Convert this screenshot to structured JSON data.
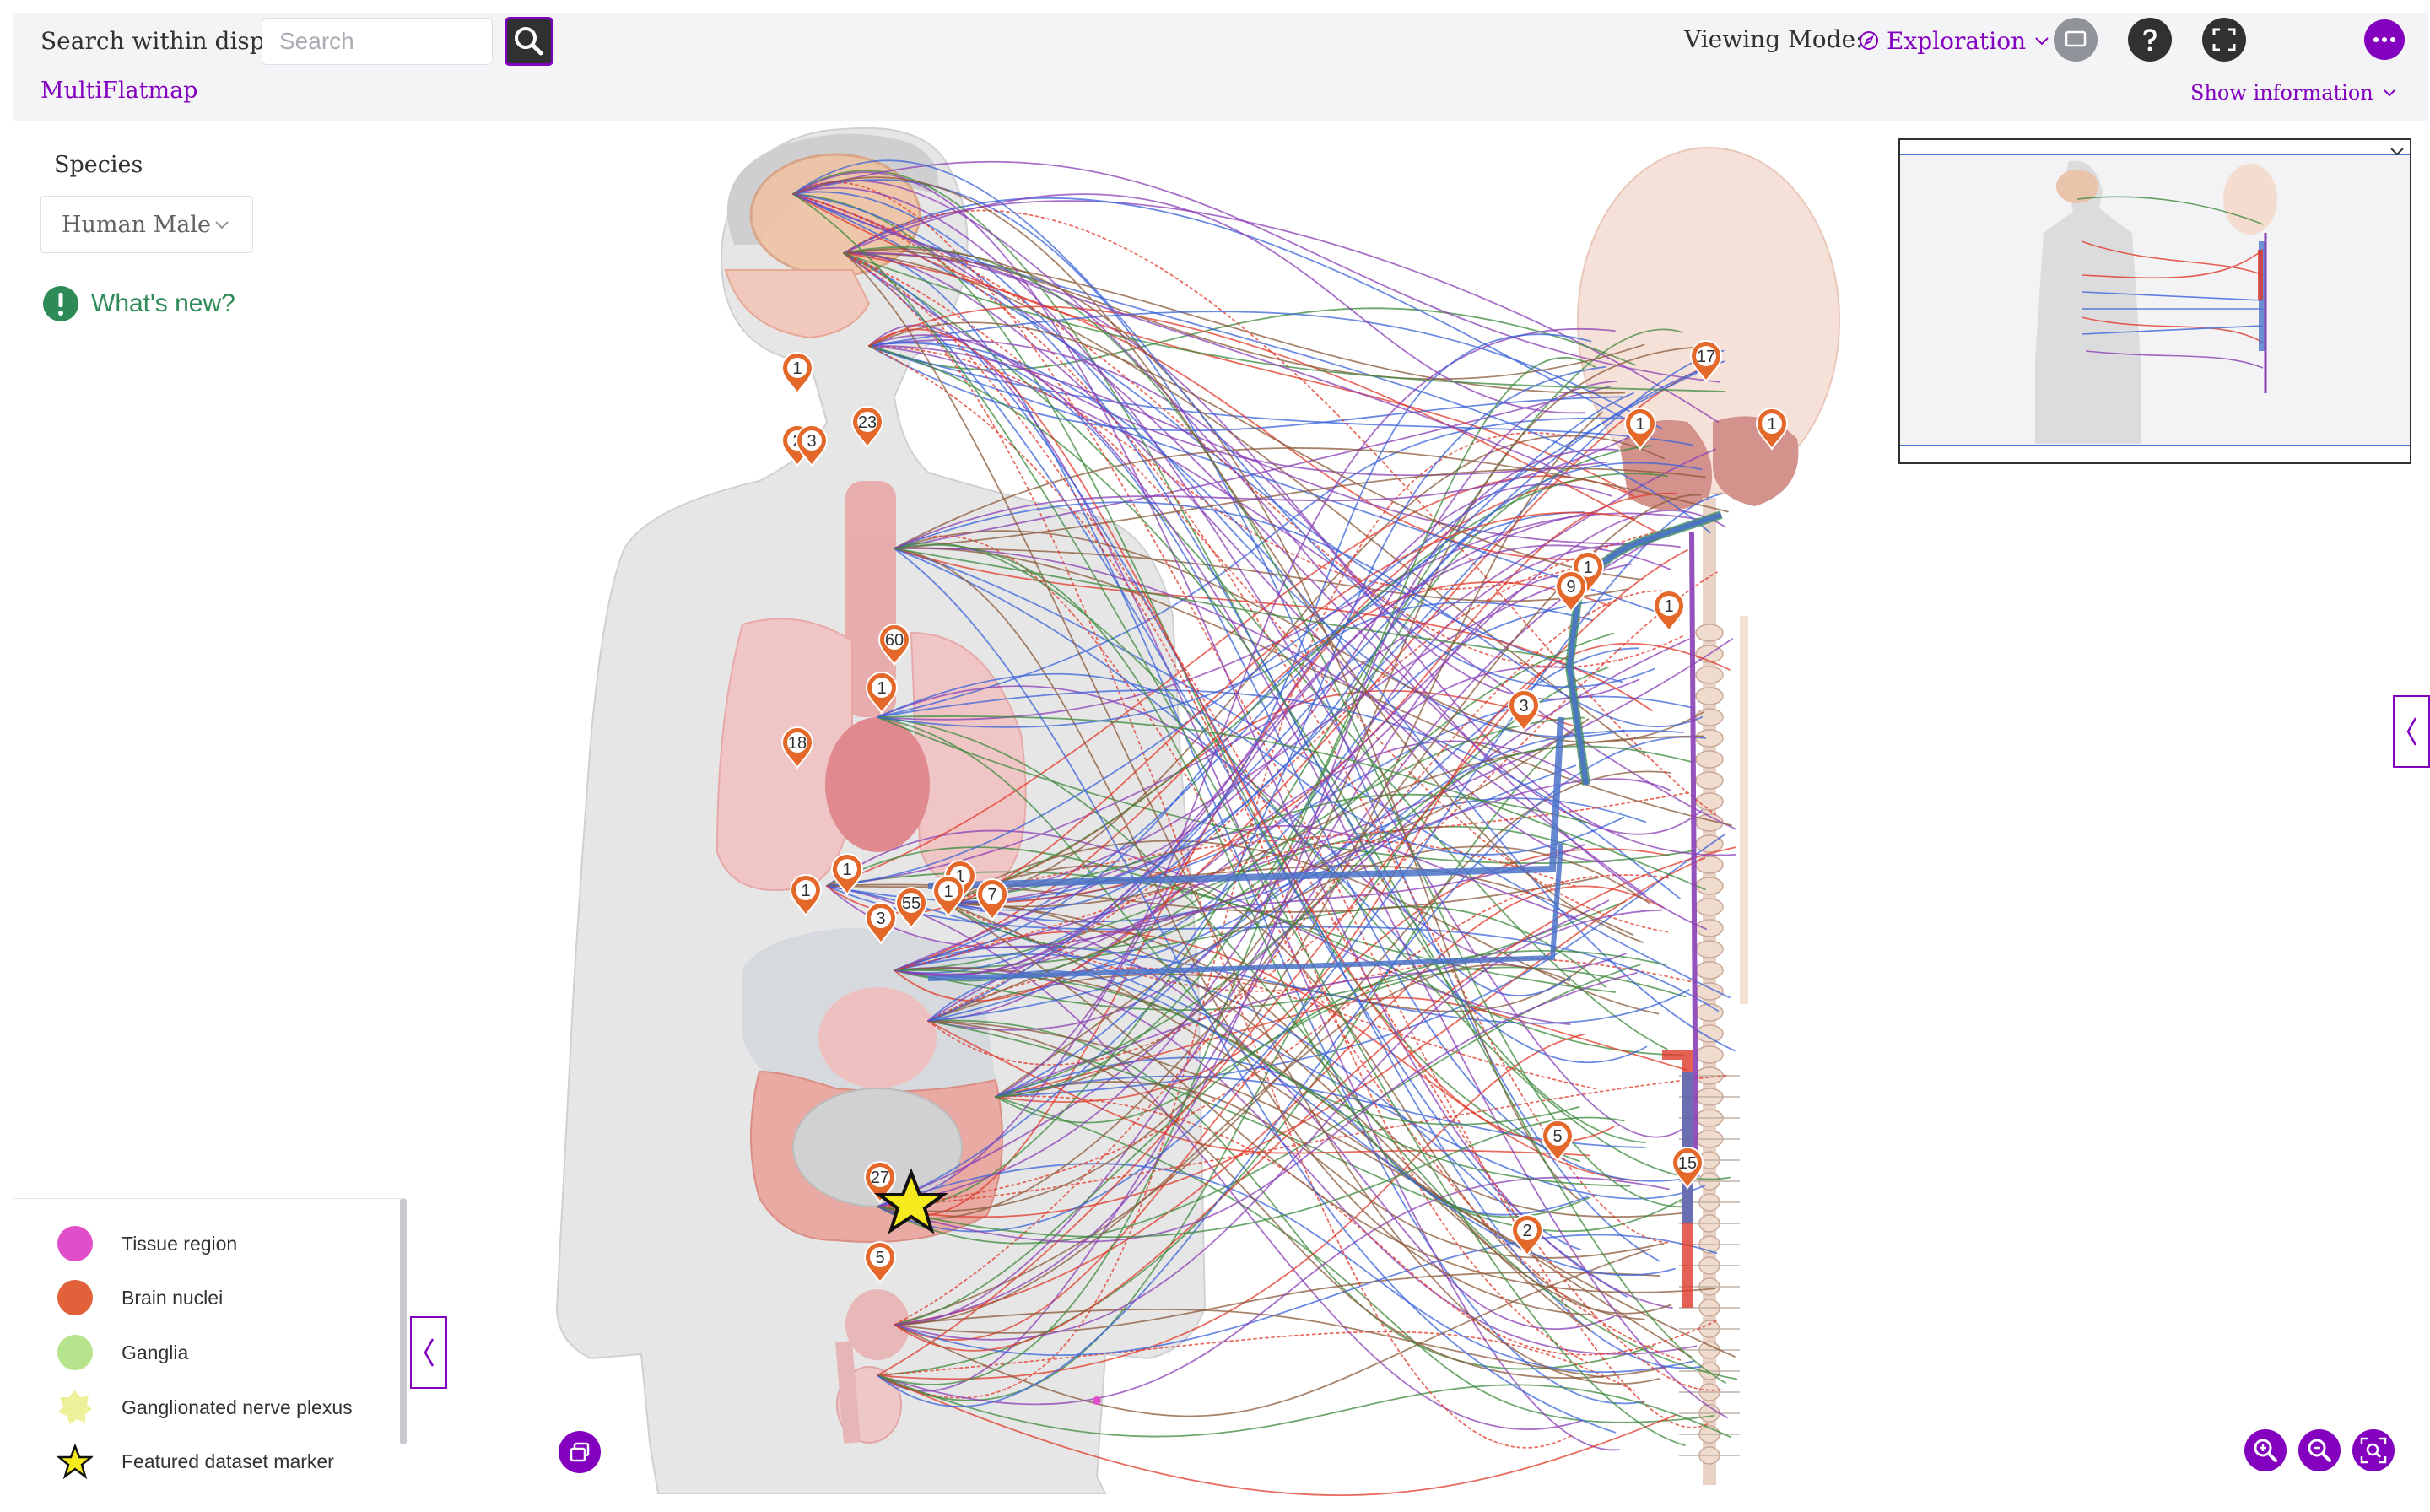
{
  "search": {
    "label": "Search within display",
    "placeholder": "Search"
  },
  "viewing": {
    "label": "Viewing Mode:",
    "mode": "Exploration"
  },
  "app": {
    "name": "MultiFlatmap",
    "info_toggle": "Show information"
  },
  "species": {
    "label": "Species",
    "value": "Human Male"
  },
  "whats_new": "What's new?",
  "legend": [
    {
      "label": "Tissue region",
      "color": "#e04fc9",
      "shape": "circle"
    },
    {
      "label": "Brain nuclei",
      "color": "#e0613a",
      "shape": "circle"
    },
    {
      "label": "Ganglia",
      "color": "#b7e38c",
      "shape": "circle"
    },
    {
      "label": "Ganglionated nerve plexus",
      "color": "#eef09a",
      "shape": "star-burst"
    },
    {
      "label": "Featured dataset marker",
      "color": "#f5ea1e",
      "shape": "star"
    }
  ],
  "markers": [
    "1",
    "23",
    "2",
    "3",
    "60",
    "1",
    "18",
    "1",
    "1",
    "55",
    "1",
    "1",
    "7",
    "3",
    "27",
    "5",
    "17",
    "1",
    "1",
    "1",
    "9",
    "1",
    "3",
    "5",
    "15",
    "2"
  ],
  "colors": {
    "accent": "#8300bf",
    "marker": "#e4682a",
    "sympathetic": "#e03a2a",
    "parasympathetic": "#3a63d8",
    "sensory": "#3e8a3e"
  }
}
